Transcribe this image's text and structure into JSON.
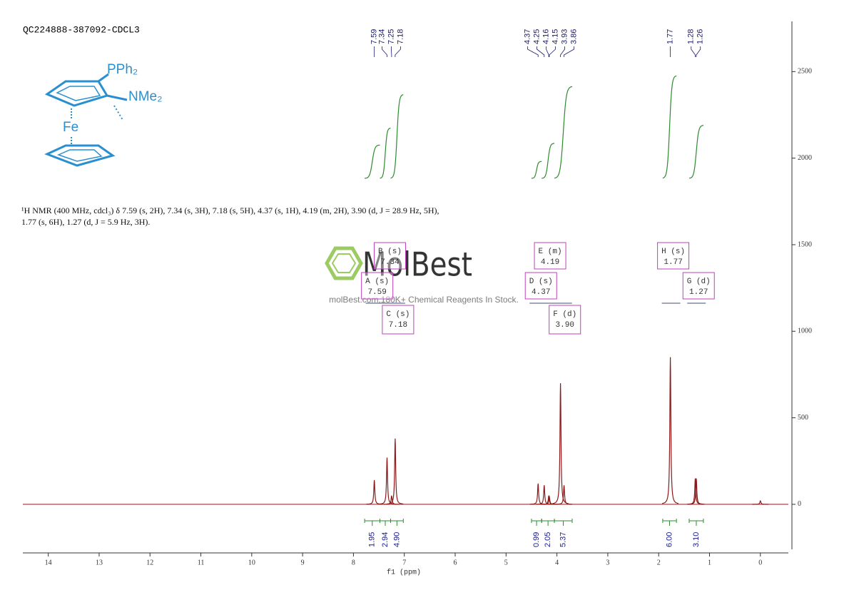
{
  "chart_data": {
    "type": "nmr",
    "title": "QC224888-387092-CDCL3",
    "xlabel": "f1 (ppm)",
    "xlim": [
      14.5,
      -0.55
    ],
    "xticks": [
      14,
      13,
      12,
      11,
      10,
      9,
      8,
      7,
      6,
      5,
      4,
      3,
      2,
      1,
      0
    ],
    "ylim": [
      -260,
      2790
    ],
    "yticks": [
      0,
      500,
      1000,
      1500,
      2000,
      2500
    ],
    "color": "#8b1a1a",
    "peak_labels": [
      7.59,
      7.34,
      7.25,
      7.18,
      4.37,
      4.25,
      4.16,
      4.15,
      3.93,
      3.86,
      1.77,
      1.28,
      1.26
    ],
    "peaks": {
      "x": [
        7.59,
        7.34,
        7.25,
        7.18,
        4.37,
        4.25,
        4.16,
        4.15,
        3.93,
        3.86,
        1.77,
        1.28,
        1.26,
        0
      ],
      "values": [
        140,
        270,
        50,
        380,
        120,
        110,
        50,
        45,
        700,
        110,
        850,
        150,
        150,
        20
      ]
    },
    "integrals": {
      "color": "#2e8b2e",
      "ranges": [
        [
          7.78,
          7.48
        ],
        [
          7.48,
          7.27
        ],
        [
          7.27,
          7.02
        ],
        [
          4.5,
          4.3
        ],
        [
          4.3,
          4.05
        ],
        [
          4.05,
          3.7
        ],
        [
          1.92,
          1.65
        ],
        [
          1.4,
          1.12
        ]
      ],
      "values": [
        1.95,
        2.94,
        4.9,
        0.99,
        2.05,
        5.37,
        6,
        3.1
      ],
      "value_labels": [
        "1.95",
        "2.94",
        "4.90",
        "0.99",
        "2.05",
        "5.37",
        "6.00",
        "3.10"
      ]
    },
    "multiplets": {
      "names": [
        "A (s)",
        "B (s)",
        "C (s)",
        "D (s)",
        "E (m)",
        "F (d)",
        "G (d)",
        "H (s)"
      ],
      "values": [
        7.59,
        7.34,
        7.18,
        4.37,
        4.19,
        3.9,
        1.27,
        1.77
      ],
      "value_labels": [
        "7.59",
        "7.34",
        "7.18",
        "4.37",
        "4.19",
        "3.90",
        "1.27",
        "1.77"
      ]
    }
  },
  "description": "¹H NMR (400 MHz, cdcl₃) δ 7.59 (s, 2H), 7.34 (s, 3H), 7.18 (s, 5H), 4.37 (s, 1H), 4.19 (m, 2H), 3.90 (d, J = 28.9 Hz, 5H), 1.77 (s, 6H), 1.27 (d, J = 5.9 Hz, 3H).",
  "structure": {
    "labels": [
      "PPh₂",
      "NMe₂",
      "Fe"
    ]
  },
  "watermark": {
    "logo": "MolBest",
    "tagline": "molBest.com,180K+ Chemical Reagents In Stock."
  }
}
